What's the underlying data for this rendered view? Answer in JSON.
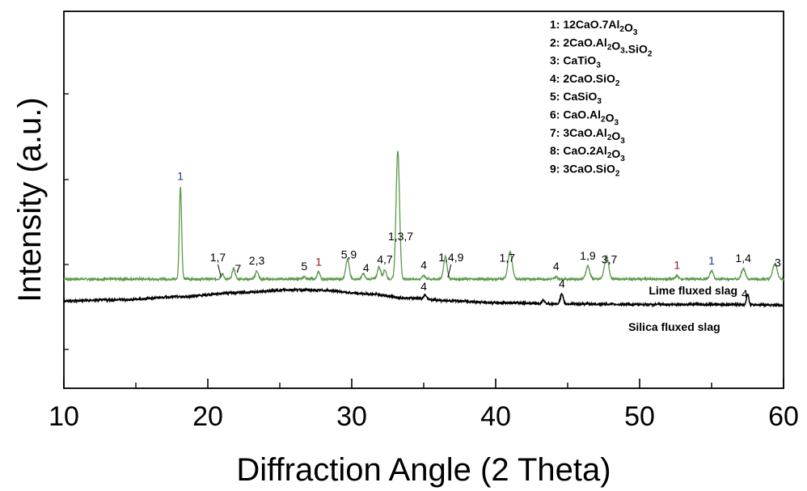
{
  "chart_data": {
    "type": "line",
    "xlabel": "Diffraction Angle (2 Theta)",
    "ylabel": "Intensity (a.u.)",
    "xlim": [
      10,
      60
    ],
    "x_ticks": [
      "10",
      "20",
      "30",
      "40",
      "50",
      "60"
    ],
    "y_ticks_labeled": false,
    "grid": false,
    "legend_position": "top-right",
    "legend": [
      {
        "id": "1",
        "formula": "12CaO.7Al2O3",
        "parts": [
          [
            "1: 12CaO.7Al",
            ""
          ],
          [
            "2",
            "sub"
          ],
          [
            "O",
            ""
          ],
          [
            "3",
            "sub"
          ]
        ]
      },
      {
        "id": "2",
        "formula": "2CaO.Al2O3.SiO2",
        "parts": [
          [
            "2: 2CaO.Al",
            ""
          ],
          [
            "2",
            "sub"
          ],
          [
            "O",
            ""
          ],
          [
            "3",
            "sub"
          ],
          [
            ".SiO",
            ""
          ],
          [
            "2",
            "sub"
          ]
        ]
      },
      {
        "id": "3",
        "formula": "CaTiO3",
        "parts": [
          [
            "3: CaTiO",
            ""
          ],
          [
            "3",
            "sub"
          ]
        ]
      },
      {
        "id": "4",
        "formula": "2CaO.SiO2",
        "parts": [
          [
            "4: 2CaO.SiO",
            ""
          ],
          [
            "2",
            "sub"
          ]
        ]
      },
      {
        "id": "5",
        "formula": "CaSiO3",
        "parts": [
          [
            "5: CaSiO",
            ""
          ],
          [
            "3",
            "sub"
          ]
        ]
      },
      {
        "id": "6",
        "formula": "CaO.Al2O3",
        "parts": [
          [
            "6: CaO.Al",
            ""
          ],
          [
            "2",
            "sub"
          ],
          [
            "O",
            ""
          ],
          [
            "3",
            "sub"
          ]
        ]
      },
      {
        "id": "7",
        "formula": "3CaO.Al2O3",
        "parts": [
          [
            "7: 3CaO.Al",
            ""
          ],
          [
            "2",
            "sub"
          ],
          [
            "O",
            ""
          ],
          [
            "3",
            "sub"
          ]
        ]
      },
      {
        "id": "8",
        "formula": "CaO.2Al2O3",
        "parts": [
          [
            "8: CaO.2Al",
            ""
          ],
          [
            "2",
            "sub"
          ],
          [
            "O",
            ""
          ],
          [
            "3",
            "sub"
          ]
        ]
      },
      {
        "id": "9",
        "formula": "3CaO.SiO2",
        "parts": [
          [
            "9: 3CaO.SiO",
            ""
          ],
          [
            "2",
            "sub"
          ]
        ]
      }
    ],
    "series": [
      {
        "name": "Lime fluxed slag",
        "color": "#5a9a4a",
        "baseline": 1.0,
        "peaks": [
          {
            "x": 13.0,
            "h": 0.05,
            "w": 0.1
          },
          {
            "x": 18.1,
            "h": 7.9,
            "w": 0.08
          },
          {
            "x": 21.0,
            "h": 0.45,
            "w": 0.1
          },
          {
            "x": 21.8,
            "h": 0.9,
            "w": 0.1
          },
          {
            "x": 23.4,
            "h": 0.7,
            "w": 0.1
          },
          {
            "x": 26.7,
            "h": 0.2,
            "w": 0.1
          },
          {
            "x": 27.7,
            "h": 0.6,
            "w": 0.1
          },
          {
            "x": 29.7,
            "h": 1.7,
            "w": 0.12
          },
          {
            "x": 30.8,
            "h": 0.45,
            "w": 0.1
          },
          {
            "x": 31.9,
            "h": 1.0,
            "w": 0.12
          },
          {
            "x": 32.3,
            "h": 0.8,
            "w": 0.1
          },
          {
            "x": 33.2,
            "h": 11.0,
            "w": 0.12
          },
          {
            "x": 35.0,
            "h": 0.3,
            "w": 0.1
          },
          {
            "x": 36.5,
            "h": 1.9,
            "w": 0.12
          },
          {
            "x": 41.0,
            "h": 2.3,
            "w": 0.15
          },
          {
            "x": 44.2,
            "h": 0.2,
            "w": 0.1
          },
          {
            "x": 46.4,
            "h": 1.1,
            "w": 0.13
          },
          {
            "x": 47.7,
            "h": 1.9,
            "w": 0.15
          },
          {
            "x": 52.6,
            "h": 0.3,
            "w": 0.1
          },
          {
            "x": 55.0,
            "h": 0.7,
            "w": 0.12
          },
          {
            "x": 57.2,
            "h": 0.9,
            "w": 0.13
          },
          {
            "x": 59.4,
            "h": 1.3,
            "w": 0.15
          }
        ]
      },
      {
        "name": "Silica fluxed slag",
        "color": "#000000",
        "baseline_points": [
          [
            10,
            0.0
          ],
          [
            14,
            0.1
          ],
          [
            18,
            0.35
          ],
          [
            22,
            0.7
          ],
          [
            26,
            0.95
          ],
          [
            28,
            0.9
          ],
          [
            31,
            0.6
          ],
          [
            34,
            0.25
          ],
          [
            37,
            0.0
          ],
          [
            40,
            -0.15
          ],
          [
            45,
            -0.25
          ],
          [
            50,
            -0.3
          ],
          [
            55,
            -0.3
          ],
          [
            60,
            -0.35
          ]
        ],
        "peaks": [
          {
            "x": 35.1,
            "h": 0.35,
            "w": 0.08
          },
          {
            "x": 43.3,
            "h": 0.3,
            "w": 0.08
          },
          {
            "x": 44.6,
            "h": 0.85,
            "w": 0.1
          },
          {
            "x": 57.5,
            "h": 0.9,
            "w": 0.08
          }
        ]
      }
    ],
    "annotations": [
      {
        "text": "1",
        "x": 18.1,
        "series": 0,
        "color": "#1f3a8a"
      },
      {
        "text": "1,7",
        "x": 20.7,
        "series": 0,
        "color": "#000000",
        "leader": true
      },
      {
        "text": "7",
        "x": 22.1,
        "series": 0,
        "color": "#000000"
      },
      {
        "text": "2,3",
        "x": 23.4,
        "series": 0,
        "color": "#000000"
      },
      {
        "text": "5",
        "x": 26.7,
        "series": 0,
        "color": "#000000"
      },
      {
        "text": "1",
        "x": 27.7,
        "series": 0,
        "color": "#8b1a1a"
      },
      {
        "text": "5,9",
        "x": 29.8,
        "series": 0,
        "color": "#000000"
      },
      {
        "text": "4",
        "x": 31.0,
        "series": 0,
        "color": "#000000"
      },
      {
        "text": "4,7",
        "x": 32.3,
        "series": 0,
        "color": "#000000"
      },
      {
        "text": "1,3,7",
        "x": 33.4,
        "series": 0,
        "color": "#000000"
      },
      {
        "text": "4",
        "x": 35.0,
        "series": 0,
        "color": "#000000"
      },
      {
        "text": "1,4,9",
        "x": 36.9,
        "series": 0,
        "color": "#000000",
        "leader": true
      },
      {
        "text": "1,7",
        "x": 40.8,
        "series": 0,
        "color": "#000000"
      },
      {
        "text": "4",
        "x": 44.2,
        "series": 0,
        "color": "#000000"
      },
      {
        "text": "1,9",
        "x": 46.4,
        "series": 0,
        "color": "#000000"
      },
      {
        "text": "3,7",
        "x": 47.9,
        "series": 0,
        "color": "#000000"
      },
      {
        "text": "1",
        "x": 52.6,
        "series": 0,
        "color": "#8b1a1a"
      },
      {
        "text": "1",
        "x": 55.0,
        "series": 0,
        "color": "#1f3a8a"
      },
      {
        "text": "1,4",
        "x": 57.2,
        "series": 0,
        "color": "#000000"
      },
      {
        "text": "3",
        "x": 59.6,
        "series": 0,
        "color": "#000000"
      },
      {
        "text": "4",
        "x": 35.0,
        "series": 1,
        "color": "#000000"
      },
      {
        "text": "4",
        "x": 44.6,
        "series": 1,
        "color": "#000000"
      },
      {
        "text": "4",
        "x": 57.3,
        "series": 1,
        "color": "#000000"
      }
    ]
  }
}
